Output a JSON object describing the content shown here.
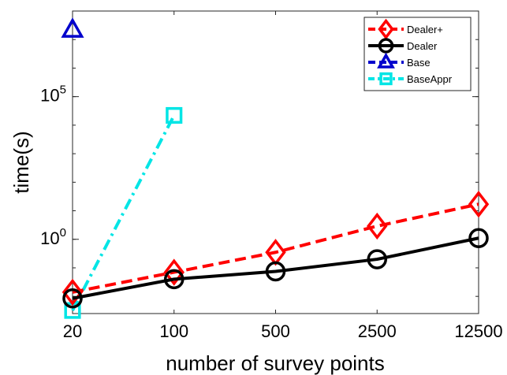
{
  "chart_data": {
    "type": "line",
    "xscale": "log",
    "yscale": "log",
    "x_ticks": [
      20,
      100,
      500,
      2500,
      12500
    ],
    "x_tick_labels": [
      "20",
      "100",
      "500",
      "2500",
      "12500"
    ],
    "y_ticks": [
      {
        "value": 1,
        "base": "10",
        "exp": "0"
      },
      {
        "value": 100000,
        "base": "10",
        "exp": "5"
      }
    ],
    "xlabel": "number of survey points",
    "ylabel": "time(s)",
    "xlim": [
      20,
      12500
    ],
    "ylim": [
      0.0025,
      100000000
    ],
    "grid": false,
    "legend_position": "top-right",
    "series": [
      {
        "name": "Dealer+",
        "color": "#ff0000",
        "dash": "dashed",
        "marker": "diamond",
        "x": [
          20,
          100,
          500,
          2500,
          12500
        ],
        "y": [
          0.014,
          0.07,
          0.35,
          2.9,
          17
        ]
      },
      {
        "name": "Dealer",
        "color": "#000000",
        "dash": "solid",
        "marker": "circle",
        "x": [
          20,
          100,
          500,
          2500,
          12500
        ],
        "y": [
          0.0085,
          0.04,
          0.075,
          0.2,
          1.1
        ]
      },
      {
        "name": "Base",
        "color": "#0000cc",
        "dash": "dashed",
        "marker": "triangle",
        "x": [
          20
        ],
        "y": [
          22000000
        ]
      },
      {
        "name": "BaseAppr",
        "color": "#00e5e5",
        "dash": "dashdot",
        "marker": "square",
        "x": [
          20,
          100
        ],
        "y": [
          0.0032,
          22000
        ]
      }
    ]
  }
}
